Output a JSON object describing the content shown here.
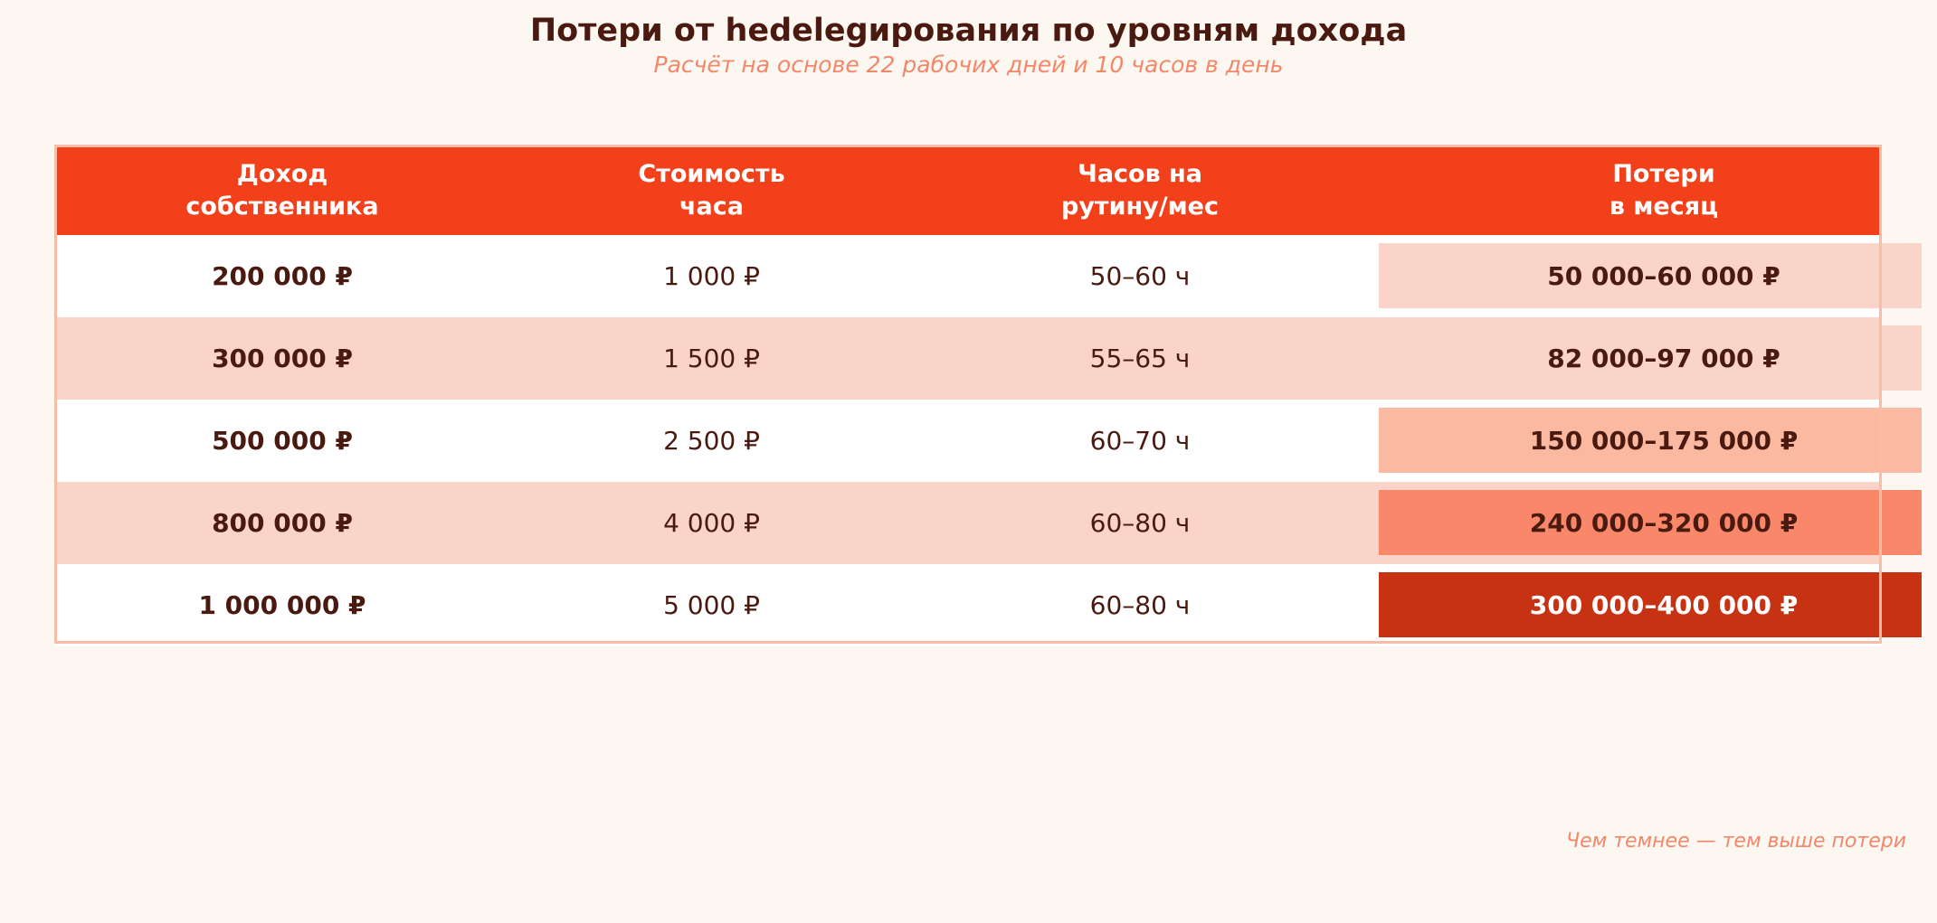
{
  "title": "Потери от hedelegирования по уровням дохода",
  "subtitle": "Расчёт на основе 22 рабочих дней и 10 часов в день",
  "footnote": "Чем темнее — тем выше потери",
  "colors": {
    "header_bg": "#f2401a",
    "header_text": "#ffffff",
    "row_odd": "#ffffff",
    "row_even": "#fad4c9",
    "text_dark": "#4a1a10",
    "accent_text": "#f2876a",
    "border": "#f9bca6"
  },
  "chart_data": {
    "type": "table",
    "columns": [
      "Доход\nсобственника",
      "Стоимость\nчаса",
      "Часов на\nрутину/мес",
      "Потери\nв месяц"
    ],
    "rows": [
      {
        "income": "200 000 ₽",
        "hour_cost": "1 000 ₽",
        "hours": "50–60 ч",
        "loss": "50 000–60 000 ₽",
        "loss_color": "#fad4c9",
        "loss_text_color": "#4a1a10"
      },
      {
        "income": "300 000 ₽",
        "hour_cost": "1 500 ₽",
        "hours": "55–65 ч",
        "loss": "82 000–97 000 ₽",
        "loss_color": "#fad4c9",
        "loss_text_color": "#4a1a10"
      },
      {
        "income": "500 000 ₽",
        "hour_cost": "2 500 ₽",
        "hours": "60–70 ч",
        "loss": "150 000–175 000 ₽",
        "loss_color": "#fcb9a2",
        "loss_text_color": "#4a1a10"
      },
      {
        "income": "800 000 ₽",
        "hour_cost": "4 000 ₽",
        "hours": "60–80 ч",
        "loss": "240 000–320 000 ₽",
        "loss_color": "#f9886a",
        "loss_text_color": "#4a1a10"
      },
      {
        "income": "1 000 000 ₽",
        "hour_cost": "5 000 ₽",
        "hours": "60–80 ч",
        "loss": "300 000–400 000 ₽",
        "loss_color": "#c73212",
        "loss_text_color": "#ffffff"
      }
    ]
  }
}
